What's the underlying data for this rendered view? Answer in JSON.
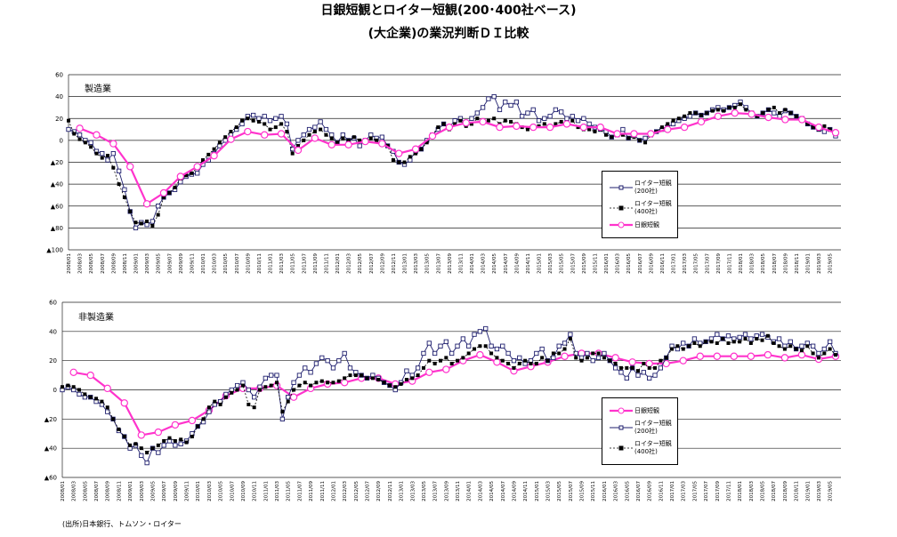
{
  "title_lines": [
    "日銀短観とロイター短観(200･400社ベース)",
    "(大企業)の業況判断ＤＩ比較"
  ],
  "source": "(出所)日本銀行、トムソン・ロイター",
  "chart_data": [
    {
      "type": "line",
      "label": "製造業",
      "categories": [
        "2008/01",
        null,
        "2008/03",
        null,
        "2008/05",
        null,
        "2008/07",
        null,
        "2008/09",
        null,
        "2008/11",
        null,
        "2009/01",
        null,
        "2009/03",
        null,
        "2009/05",
        null,
        "2009/07",
        null,
        "2009/09",
        null,
        "2009/11",
        null,
        "2010/01",
        null,
        "2010/03",
        null,
        "2010/05",
        null,
        "2010/07",
        null,
        "2010/09",
        null,
        "2010/11",
        null,
        "2011/01",
        null,
        "2011/03",
        null,
        "2011/05",
        null,
        "2011/07",
        null,
        "2011/09",
        null,
        "2011/11",
        null,
        "2012/01",
        null,
        "2012/03",
        null,
        "2012/05",
        null,
        "2012/07",
        null,
        "2012/09",
        null,
        "2012/11",
        null,
        "2013/01",
        null,
        "2013/03",
        null,
        "2013/05",
        null,
        "2013/07",
        null,
        "2013/09",
        null,
        "2013/11",
        null,
        "2014/01",
        null,
        "2014/03",
        null,
        "2014/05",
        null,
        "2014/07",
        null,
        "2014/09",
        null,
        "2014/11",
        null,
        "2015/01",
        null,
        "2015/03",
        null,
        "2015/05",
        null,
        "2015/07",
        null,
        "2015/09",
        null,
        "2015/11",
        null,
        "2016/01",
        null,
        "2016/03",
        null,
        "2016/05",
        null,
        "2016/07",
        null,
        "2016/09",
        null,
        "2016/11",
        null,
        "2017/01",
        null,
        "2017/03",
        null,
        "2017/05",
        null,
        "2017/07",
        null,
        "2017/09",
        null,
        "2017/11",
        null,
        "2018/01",
        null,
        "2018/03",
        null,
        "2018/05",
        null,
        "2018/07",
        null,
        "2018/09",
        null,
        "2018/11",
        null,
        "2019/01",
        null,
        "2019/03",
        null,
        "2019/05",
        null
      ],
      "ylim": [
        -100,
        60
      ],
      "yticks": [
        60,
        40,
        20,
        0,
        {
          "value": -20,
          "label": "▲20"
        },
        {
          "value": -40,
          "label": "▲40"
        },
        {
          "value": -60,
          "label": "▲60"
        },
        {
          "value": -80,
          "label": "▲80"
        },
        {
          "value": -100,
          "label": "▲100"
        }
      ],
      "grid": true,
      "series": [
        {
          "name": "ロイター短観(200社)",
          "color": "#1f1f6e",
          "marker": "open-square",
          "style": "solid",
          "values": [
            10,
            8,
            5,
            0,
            -2,
            -10,
            -12,
            -18,
            -12,
            -28,
            -45,
            -65,
            -80,
            -75,
            -77,
            -74,
            -60,
            -52,
            -48,
            -45,
            -38,
            -33,
            -31,
            -30,
            -22,
            -18,
            -12,
            -5,
            0,
            5,
            10,
            15,
            22,
            23,
            20,
            22,
            18,
            20,
            22,
            15,
            -8,
            0,
            5,
            10,
            12,
            17,
            10,
            5,
            -2,
            5,
            0,
            2,
            -5,
            0,
            5,
            2,
            3,
            -5,
            -10,
            -20,
            -22,
            -18,
            -10,
            -8,
            0,
            5,
            10,
            15,
            12,
            18,
            20,
            15,
            20,
            25,
            30,
            38,
            40,
            28,
            35,
            32,
            35,
            22,
            25,
            28,
            18,
            20,
            22,
            28,
            26,
            20,
            22,
            18,
            20,
            15,
            12,
            10,
            8,
            3,
            5,
            10,
            2,
            5,
            0,
            2,
            5,
            8,
            10,
            12,
            15,
            18,
            20,
            22,
            25,
            23,
            25,
            28,
            30,
            28,
            30,
            32,
            35,
            30,
            25,
            22,
            25,
            28,
            25,
            22,
            27,
            25,
            22,
            20,
            15,
            12,
            10,
            8,
            10,
            4
          ]
        },
        {
          "name": "ロイター短観(400社)",
          "color": "#000000",
          "marker": "filled-square",
          "style": "dashed",
          "values": [
            18,
            6,
            1,
            -2,
            -6,
            -12,
            -16,
            -14,
            -25,
            -40,
            -52,
            -65,
            -75,
            -76,
            -74,
            -78,
            -68,
            -52,
            -48,
            -43,
            -35,
            -32,
            -30,
            -25,
            -18,
            -13,
            -8,
            -2,
            3,
            8,
            12,
            18,
            20,
            18,
            17,
            15,
            10,
            12,
            15,
            8,
            -12,
            -5,
            0,
            5,
            8,
            10,
            5,
            2,
            -2,
            2,
            0,
            3,
            0,
            0,
            2,
            0,
            -3,
            -5,
            -18,
            -20,
            -20,
            -15,
            -12,
            -8,
            -2,
            5,
            12,
            15,
            10,
            15,
            18,
            13,
            15,
            20,
            18,
            18,
            20,
            15,
            18,
            17,
            15,
            12,
            10,
            12,
            13,
            15,
            12,
            15,
            17,
            15,
            18,
            12,
            10,
            10,
            8,
            10,
            5,
            3,
            5,
            5,
            2,
            3,
            0,
            -2,
            5,
            8,
            12,
            15,
            18,
            20,
            22,
            25,
            25,
            23,
            25,
            27,
            28,
            27,
            30,
            30,
            33,
            28,
            25,
            22,
            25,
            28,
            30,
            25,
            28,
            25,
            22,
            18,
            15,
            12,
            10,
            13,
            10,
            8
          ]
        },
        {
          "name": "日銀短観",
          "color": "#ff33cc",
          "marker": "circle",
          "style": "thick",
          "x": [
            "2008/03",
            "2008/06",
            "2008/09",
            "2008/12",
            "2009/03",
            "2009/06",
            "2009/09",
            "2009/12",
            "2010/03",
            "2010/06",
            "2010/09",
            "2010/12",
            "2011/03",
            "2011/06",
            "2011/09",
            "2011/12",
            "2012/03",
            "2012/06",
            "2012/09",
            "2012/12",
            "2013/03",
            "2013/06",
            "2013/09",
            "2013/12",
            "2014/03",
            "2014/06",
            "2014/09",
            "2014/12",
            "2015/03",
            "2015/06",
            "2015/09",
            "2015/12",
            "2016/03",
            "2016/06",
            "2016/09",
            "2016/12",
            "2017/03",
            "2017/06",
            "2017/09",
            "2017/12",
            "2018/03",
            "2018/06",
            "2018/09",
            "2018/12",
            "2019/03",
            "2019/06"
          ],
          "values": [
            11,
            5,
            -3,
            -24,
            -58,
            -48,
            -33,
            -24,
            -14,
            1,
            8,
            5,
            6,
            -9,
            2,
            -4,
            -4,
            -1,
            -3,
            -12,
            -8,
            4,
            12,
            16,
            17,
            12,
            13,
            12,
            12,
            15,
            12,
            12,
            6,
            6,
            6,
            10,
            12,
            17,
            22,
            25,
            24,
            21,
            19,
            19,
            12,
            7
          ]
        }
      ]
    },
    {
      "type": "line",
      "label": "非製造業",
      "categories": [
        "2008/01",
        null,
        "2008/03",
        null,
        "2008/05",
        null,
        "2008/07",
        null,
        "2008/09",
        null,
        "2008/11",
        null,
        "2009/01",
        null,
        "2009/03",
        null,
        "2009/05",
        null,
        "2009/07",
        null,
        "2009/09",
        null,
        "2009/11",
        null,
        "2010/01",
        null,
        "2010/03",
        null,
        "2010/05",
        null,
        "2010/07",
        null,
        "2010/09",
        null,
        "2010/11",
        null,
        "2011/01",
        null,
        "2011/03",
        null,
        "2011/05",
        null,
        "2011/07",
        null,
        "2011/09",
        null,
        "2011/11",
        null,
        "2012/01",
        null,
        "2012/03",
        null,
        "2012/05",
        null,
        "2012/07",
        null,
        "2012/09",
        null,
        "2012/11",
        null,
        "2013/01",
        null,
        "2013/03",
        null,
        "2013/05",
        null,
        "2013/07",
        null,
        "2013/09",
        null,
        "2013/11",
        null,
        "2014/01",
        null,
        "2014/03",
        null,
        "2014/05",
        null,
        "2014/07",
        null,
        "2014/09",
        null,
        "2014/11",
        null,
        "2015/01",
        null,
        "2015/03",
        null,
        "2015/05",
        null,
        "2015/07",
        null,
        "2015/09",
        null,
        "2015/11",
        null,
        "2016/01",
        null,
        "2016/03",
        null,
        "2016/05",
        null,
        "2016/07",
        null,
        "2016/09",
        null,
        "2016/11",
        null,
        "2017/01",
        null,
        "2017/03",
        null,
        "2017/05",
        null,
        "2017/07",
        null,
        "2017/09",
        null,
        "2017/11",
        null,
        "2018/01",
        null,
        "2018/03",
        null,
        "2018/05",
        null,
        "2018/07",
        null,
        "2018/09",
        null,
        "2018/11",
        null,
        "2019/01",
        null,
        "2019/03",
        null,
        "2019/05",
        null
      ],
      "ylim": [
        -60,
        60
      ],
      "yticks": [
        60,
        40,
        20,
        0,
        {
          "value": -20,
          "label": "▲20"
        },
        {
          "value": -40,
          "label": "▲40"
        },
        {
          "value": -60,
          "label": "▲60"
        }
      ],
      "grid": true,
      "series": [
        {
          "name": "日銀短観",
          "color": "#ff33cc",
          "marker": "circle",
          "style": "thick",
          "x": [
            "2008/03",
            "2008/06",
            "2008/09",
            "2008/12",
            "2009/03",
            "2009/06",
            "2009/09",
            "2009/12",
            "2010/03",
            "2010/06",
            "2010/09",
            "2010/12",
            "2011/03",
            "2011/06",
            "2011/09",
            "2011/12",
            "2012/03",
            "2012/06",
            "2012/09",
            "2012/12",
            "2013/03",
            "2013/06",
            "2013/09",
            "2013/12",
            "2014/03",
            "2014/06",
            "2014/09",
            "2014/12",
            "2015/03",
            "2015/06",
            "2015/09",
            "2015/12",
            "2016/03",
            "2016/06",
            "2016/09",
            "2016/12",
            "2017/03",
            "2017/06",
            "2017/09",
            "2017/12",
            "2018/03",
            "2018/06",
            "2018/09",
            "2018/12",
            "2019/03",
            "2019/06"
          ],
          "values": [
            12,
            10,
            1,
            -9,
            -31,
            -29,
            -24,
            -21,
            -14,
            -4,
            1,
            1,
            3,
            -5,
            1,
            4,
            5,
            8,
            8,
            4,
            6,
            12,
            14,
            20,
            24,
            19,
            13,
            16,
            19,
            23,
            25,
            25,
            22,
            19,
            18,
            18,
            20,
            23,
            23,
            23,
            23,
            24,
            22,
            24,
            21,
            23
          ]
        },
        {
          "name": "ロイター短観(200社)",
          "color": "#1f1f6e",
          "marker": "open-square",
          "style": "solid",
          "values": [
            0,
            2,
            0,
            -3,
            -5,
            -5,
            -8,
            -10,
            -15,
            -20,
            -28,
            -32,
            -40,
            -38,
            -45,
            -50,
            -40,
            -43,
            -38,
            -35,
            -38,
            -37,
            -35,
            -30,
            -25,
            -22,
            -15,
            -10,
            -8,
            -3,
            0,
            3,
            5,
            0,
            -5,
            2,
            8,
            10,
            10,
            -20,
            -5,
            5,
            10,
            15,
            12,
            18,
            22,
            20,
            15,
            20,
            25,
            15,
            12,
            10,
            8,
            10,
            8,
            5,
            3,
            0,
            5,
            13,
            10,
            15,
            25,
            32,
            25,
            30,
            33,
            25,
            30,
            35,
            30,
            38,
            40,
            42,
            30,
            28,
            30,
            25,
            20,
            22,
            18,
            20,
            25,
            28,
            20,
            22,
            30,
            32,
            38,
            25,
            22,
            25,
            20,
            22,
            25,
            20,
            15,
            12,
            8,
            15,
            10,
            12,
            8,
            10,
            15,
            22,
            30,
            28,
            32,
            30,
            35,
            32,
            33,
            35,
            38,
            35,
            37,
            35,
            36,
            38,
            35,
            37,
            38,
            36,
            33,
            35,
            30,
            33,
            28,
            30,
            32,
            30,
            25,
            28,
            33,
            25
          ]
        },
        {
          "name": "ロイター短観(400社)",
          "color": "#000000",
          "marker": "filled-square",
          "style": "dashed",
          "values": [
            2,
            3,
            2,
            0,
            -3,
            -5,
            -6,
            -8,
            -12,
            -20,
            -27,
            -32,
            -38,
            -37,
            -40,
            -43,
            -40,
            -38,
            -35,
            -33,
            -35,
            -34,
            -36,
            -32,
            -25,
            -20,
            -12,
            -8,
            -10,
            -5,
            -2,
            0,
            3,
            -10,
            -12,
            0,
            2,
            3,
            5,
            -15,
            -8,
            0,
            3,
            5,
            3,
            5,
            6,
            5,
            5,
            6,
            8,
            10,
            10,
            10,
            8,
            8,
            7,
            5,
            3,
            2,
            4,
            7,
            8,
            10,
            15,
            20,
            18,
            20,
            22,
            18,
            20,
            22,
            25,
            28,
            30,
            30,
            25,
            22,
            20,
            18,
            15,
            18,
            20,
            18,
            18,
            22,
            20,
            25,
            25,
            28,
            35,
            22,
            20,
            22,
            25,
            25,
            22,
            20,
            18,
            15,
            15,
            15,
            13,
            18,
            15,
            15,
            20,
            22,
            28,
            30,
            28,
            30,
            32,
            30,
            33,
            33,
            32,
            35,
            32,
            33,
            33,
            35,
            32,
            35,
            34,
            37,
            32,
            30,
            28,
            30,
            28,
            27,
            30,
            25,
            22,
            25,
            28,
            24
          ]
        }
      ]
    }
  ]
}
